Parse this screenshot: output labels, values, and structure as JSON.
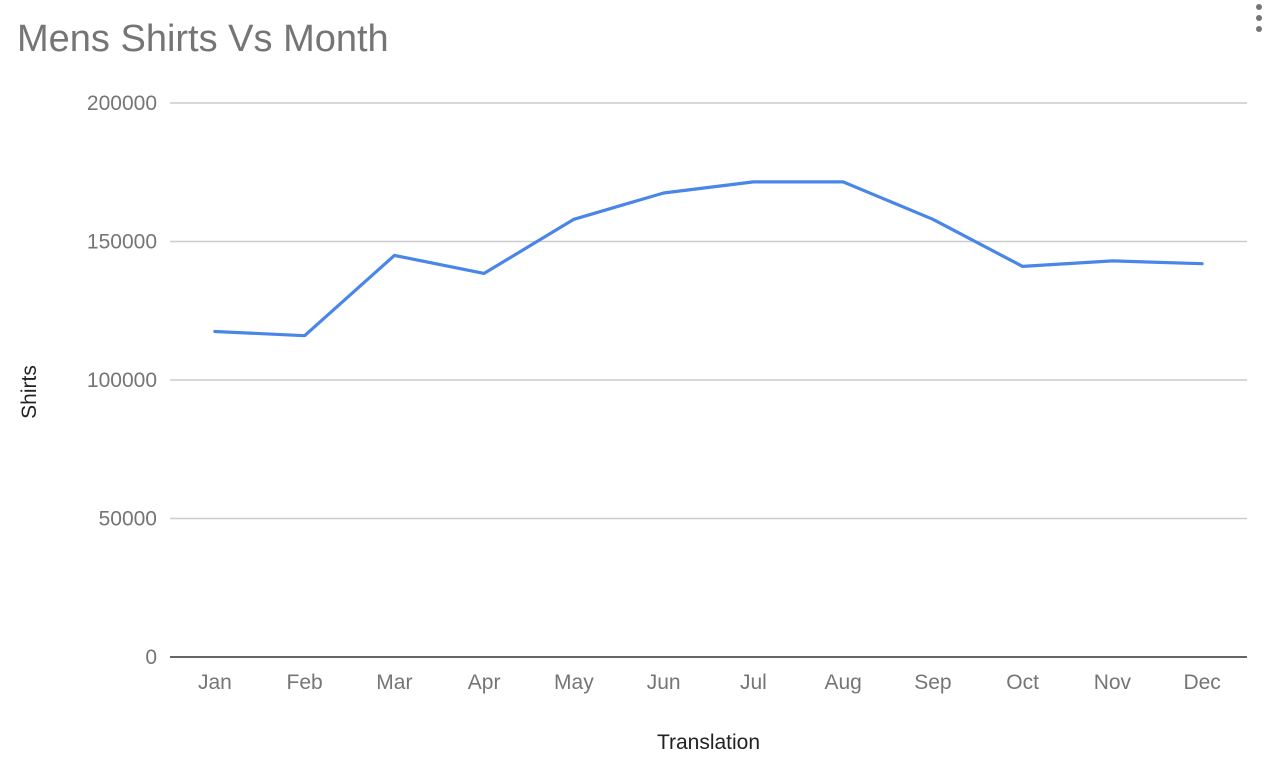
{
  "chart_data": {
    "type": "line",
    "title": "Mens Shirts Vs Month",
    "xlabel": "Translation",
    "ylabel": "Shirts",
    "categories": [
      "Jan",
      "Feb",
      "Mar",
      "Apr",
      "May",
      "Jun",
      "Jul",
      "Aug",
      "Sep",
      "Oct",
      "Nov",
      "Dec"
    ],
    "series": [
      {
        "values": [
          117500,
          116000,
          145000,
          138500,
          158000,
          167500,
          171500,
          171500,
          158000,
          141000,
          143000,
          142000
        ],
        "color": "#4a86e8"
      }
    ],
    "yticks": [
      "0",
      "50000",
      "100000",
      "150000",
      "200000"
    ],
    "ylim": [
      0,
      200000
    ],
    "grid": true,
    "legend": "none"
  },
  "menu": {
    "icon": "more-vert-icon"
  },
  "colors": {
    "line": "#4a86e8",
    "grid": "#cccccc",
    "axis": "#333333",
    "text": "#757575",
    "title": "#757575"
  }
}
